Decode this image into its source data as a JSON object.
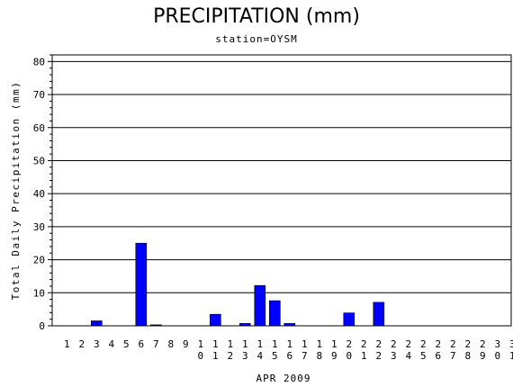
{
  "chart_data": {
    "type": "bar",
    "title": "PRECIPITATION (mm)",
    "subtitle": "station=OYSM",
    "xlabel": "APR 2009",
    "ylabel": "Total Daily Precipitation (mm)",
    "ylim": [
      0,
      82
    ],
    "yticks": [
      0,
      10,
      20,
      30,
      40,
      50,
      60,
      70,
      80
    ],
    "grid": true,
    "bar_color": "#0000ff",
    "categories": [
      "1",
      "2",
      "3",
      "4",
      "5",
      "6",
      "7",
      "8",
      "9",
      "10",
      "11",
      "12",
      "13",
      "14",
      "15",
      "16",
      "17",
      "18",
      "19",
      "20",
      "21",
      "22",
      "23",
      "24",
      "25",
      "26",
      "27",
      "28",
      "29",
      "30",
      "31"
    ],
    "values": [
      0,
      0,
      1.5,
      0,
      0,
      25,
      0.3,
      0,
      0,
      0,
      3.5,
      0,
      0.7,
      12.2,
      7.6,
      0.7,
      0,
      0,
      0,
      3.9,
      0,
      7.1,
      0,
      0,
      0,
      0,
      0,
      0,
      0,
      0,
      0
    ]
  }
}
